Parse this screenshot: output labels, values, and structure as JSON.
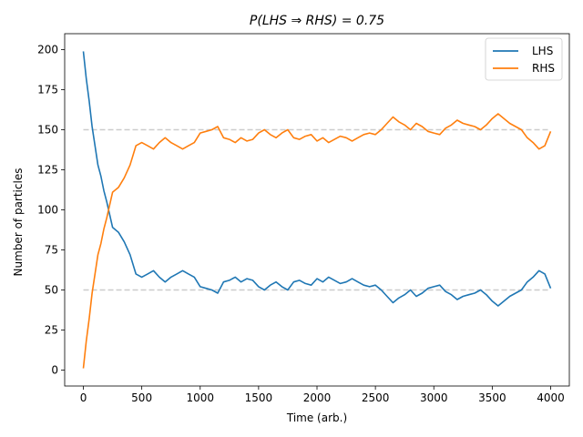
{
  "chart_data": {
    "type": "line",
    "title": "P(LHS ⇒ RHS) = 0.75",
    "xlabel": "Time (arb.)",
    "ylabel": "Number of particles",
    "xlim": [
      -160,
      4160
    ],
    "ylim": [
      -10,
      210
    ],
    "xticks": [
      0,
      500,
      1000,
      1500,
      2000,
      2500,
      3000,
      3500,
      4000
    ],
    "yticks": [
      0,
      25,
      50,
      75,
      100,
      125,
      150,
      175,
      200
    ],
    "grid": false,
    "legend_position": "top-right",
    "reference_lines": [
      {
        "y": 50,
        "style": "dashed",
        "color": "#cccccc"
      },
      {
        "y": 150,
        "style": "dashed",
        "color": "#cccccc"
      }
    ],
    "series": [
      {
        "name": "LHS",
        "color": "#1f77b4",
        "x": [
          0,
          25,
          50,
          75,
          100,
          125,
          150,
          175,
          200,
          250,
          300,
          350,
          400,
          450,
          500,
          550,
          600,
          650,
          700,
          750,
          800,
          850,
          900,
          950,
          1000,
          1050,
          1100,
          1150,
          1200,
          1250,
          1300,
          1350,
          1400,
          1450,
          1500,
          1550,
          1600,
          1650,
          1700,
          1750,
          1800,
          1850,
          1900,
          1950,
          2000,
          2050,
          2100,
          2150,
          2200,
          2250,
          2300,
          2350,
          2400,
          2450,
          2500,
          2550,
          2600,
          2650,
          2700,
          2750,
          2800,
          2850,
          2900,
          2950,
          3000,
          3050,
          3100,
          3150,
          3200,
          3250,
          3300,
          3350,
          3400,
          3450,
          3500,
          3550,
          3600,
          3650,
          3700,
          3750,
          3800,
          3850,
          3900,
          3950,
          4000
        ],
        "values": [
          199,
          182,
          168,
          152,
          140,
          128,
          121,
          112,
          105,
          89,
          86,
          80,
          72,
          60,
          58,
          60,
          62,
          58,
          55,
          58,
          60,
          62,
          60,
          58,
          52,
          51,
          50,
          48,
          55,
          56,
          58,
          55,
          57,
          56,
          52,
          50,
          53,
          55,
          52,
          50,
          55,
          56,
          54,
          53,
          57,
          55,
          58,
          56,
          54,
          55,
          57,
          55,
          53,
          52,
          53,
          50,
          46,
          42,
          45,
          47,
          50,
          46,
          48,
          51,
          52,
          53,
          49,
          47,
          44,
          46,
          47,
          48,
          50,
          47,
          43,
          40,
          43,
          46,
          48,
          50,
          55,
          58,
          62,
          60,
          51
        ]
      },
      {
        "name": "RHS",
        "color": "#ff7f0e",
        "x": [
          0,
          25,
          50,
          75,
          100,
          125,
          150,
          175,
          200,
          250,
          300,
          350,
          400,
          450,
          500,
          550,
          600,
          650,
          700,
          750,
          800,
          850,
          900,
          950,
          1000,
          1050,
          1100,
          1150,
          1200,
          1250,
          1300,
          1350,
          1400,
          1450,
          1500,
          1550,
          1600,
          1650,
          1700,
          1750,
          1800,
          1850,
          1900,
          1950,
          2000,
          2050,
          2100,
          2150,
          2200,
          2250,
          2300,
          2350,
          2400,
          2450,
          2500,
          2550,
          2600,
          2650,
          2700,
          2750,
          2800,
          2850,
          2900,
          2950,
          3000,
          3050,
          3100,
          3150,
          3200,
          3250,
          3300,
          3350,
          3400,
          3450,
          3500,
          3550,
          3600,
          3650,
          3700,
          3750,
          3800,
          3850,
          3900,
          3950,
          4000
        ],
        "values": [
          1,
          18,
          32,
          48,
          60,
          72,
          79,
          88,
          95,
          111,
          114,
          120,
          128,
          140,
          142,
          140,
          138,
          142,
          145,
          142,
          140,
          138,
          140,
          142,
          148,
          149,
          150,
          152,
          145,
          144,
          142,
          145,
          143,
          144,
          148,
          150,
          147,
          145,
          148,
          150,
          145,
          144,
          146,
          147,
          143,
          145,
          142,
          144,
          146,
          145,
          143,
          145,
          147,
          148,
          147,
          150,
          154,
          158,
          155,
          153,
          150,
          154,
          152,
          149,
          148,
          147,
          151,
          153,
          156,
          154,
          153,
          152,
          150,
          153,
          157,
          160,
          157,
          154,
          152,
          150,
          145,
          142,
          138,
          140,
          149
        ]
      }
    ]
  }
}
